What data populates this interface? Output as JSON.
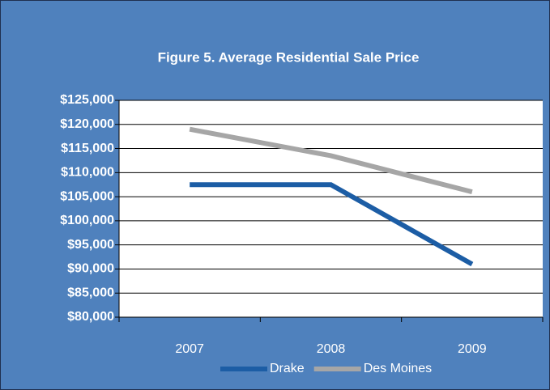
{
  "chart_data": {
    "type": "line",
    "title": "Figure 5. Average Residential Sale Price",
    "categories": [
      "2007",
      "2008",
      "2009"
    ],
    "series": [
      {
        "name": "Drake",
        "color": "#1c5da5",
        "values": [
          107500,
          107500,
          91000
        ]
      },
      {
        "name": "Des Moines",
        "color": "#a6a6a6",
        "values": [
          119000,
          113500,
          106000
        ]
      }
    ],
    "ylim": [
      80000,
      125000
    ],
    "yticks": [
      {
        "value": 80000,
        "label": "$80,000"
      },
      {
        "value": 85000,
        "label": "$85,000"
      },
      {
        "value": 90000,
        "label": "$90,000"
      },
      {
        "value": 95000,
        "label": "$95,000"
      },
      {
        "value": 100000,
        "label": "$100,000"
      },
      {
        "value": 105000,
        "label": "$105,000"
      },
      {
        "value": 110000,
        "label": "$110,000"
      },
      {
        "value": 115000,
        "label": "$115,000"
      },
      {
        "value": 120000,
        "label": "$120,000"
      },
      {
        "value": 125000,
        "label": "$125,000"
      }
    ],
    "grid": true,
    "legend": "bottom"
  }
}
